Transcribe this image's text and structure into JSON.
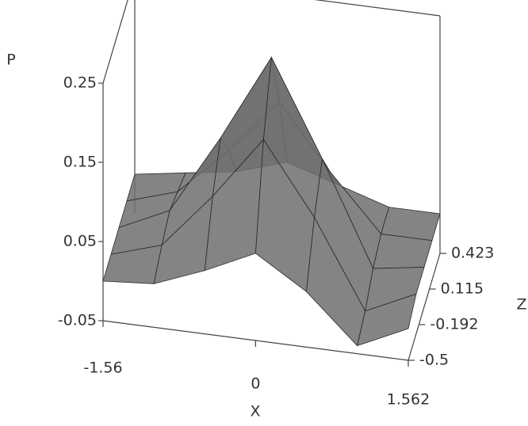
{
  "chart_data": {
    "type": "surface3d",
    "x_label": "X",
    "y_label": "P",
    "z_label": "Z",
    "x": [
      -1.56,
      -1.04,
      -0.52,
      0,
      0.52,
      1.04,
      1.562
    ],
    "z": [
      -0.5,
      -0.269,
      -0.038,
      0.192,
      0.423
    ],
    "values": [
      [
        0,
        0.005,
        0.03,
        0.06,
        0.02,
        -0.04,
        -0.01
      ],
      [
        0,
        0.02,
        0.09,
        0.17,
        0.08,
        -0.03,
        0
      ],
      [
        0,
        0.03,
        0.13,
        0.24,
        0.12,
        -0.01,
        0
      ],
      [
        0,
        0.02,
        0.08,
        0.15,
        0.07,
        0,
        0
      ],
      [
        0,
        0.01,
        0.02,
        0.04,
        0.02,
        0,
        0
      ]
    ],
    "color": "#6e6e6e",
    "xlim": [
      -1.56,
      1.562
    ],
    "xticks": [
      -1.56,
      0,
      1.562
    ],
    "ylim": [
      -0.05,
      0.25
    ],
    "yticks": [
      -0.05,
      0.05,
      0.15,
      0.25
    ],
    "zlim": [
      -0.5,
      0.423
    ],
    "zticks": [
      -0.5,
      -0.192,
      0.115,
      0.423
    ]
  }
}
